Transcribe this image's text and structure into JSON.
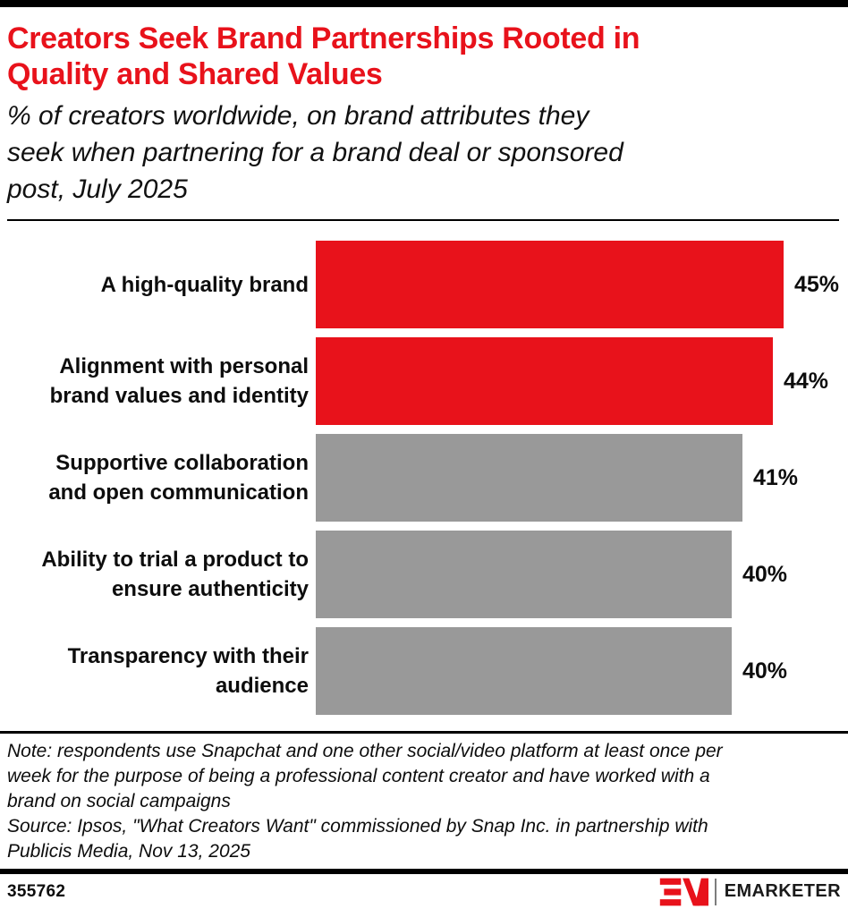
{
  "header": {
    "title": "Creators Seek Brand Partnerships Rooted in\nQuality and Shared Values",
    "subtitle": "% of creators worldwide, on brand attributes they\nseek when partnering for a brand deal or sponsored\npost, July 2025"
  },
  "chart_data": {
    "type": "bar",
    "orientation": "horizontal",
    "title": "Creators Seek Brand Partnerships Rooted in Quality and Shared Values",
    "subtitle": "% of creators worldwide, on brand attributes they seek when partnering for a brand deal or sponsored post, July 2025",
    "unit": "%",
    "categories": [
      "A high-quality brand",
      "Alignment with personal\nbrand values and identity",
      "Supportive collaboration\nand open communication",
      "Ability to trial a product to\nensure authenticity",
      "Transparency with their\naudience"
    ],
    "values": [
      45,
      44,
      41,
      40,
      40
    ],
    "value_labels": [
      "45%",
      "44%",
      "41%",
      "40%",
      "40%"
    ],
    "bar_colors": [
      "#e8121b",
      "#e8121b",
      "#999999",
      "#999999",
      "#999999"
    ],
    "xlim": [
      0,
      45
    ],
    "grid": false,
    "legend": false
  },
  "footnote": {
    "note": "Note: respondents use Snapchat and one other social/video platform at least once per\nweek for the purpose of being a professional content creator and have worked with a\nbrand on social campaigns\nSource: Ipsos, \"What Creators Want\" commissioned by Snap Inc. in partnership with\nPublicis Media, Nov 13, 2025"
  },
  "footer": {
    "chart_id": "355762",
    "brand_name": "EMARKETER"
  },
  "colors": {
    "accent_red": "#e8121b",
    "bar_gray": "#999999",
    "rule_black": "#000000",
    "text_black": "#0d0d0d"
  }
}
